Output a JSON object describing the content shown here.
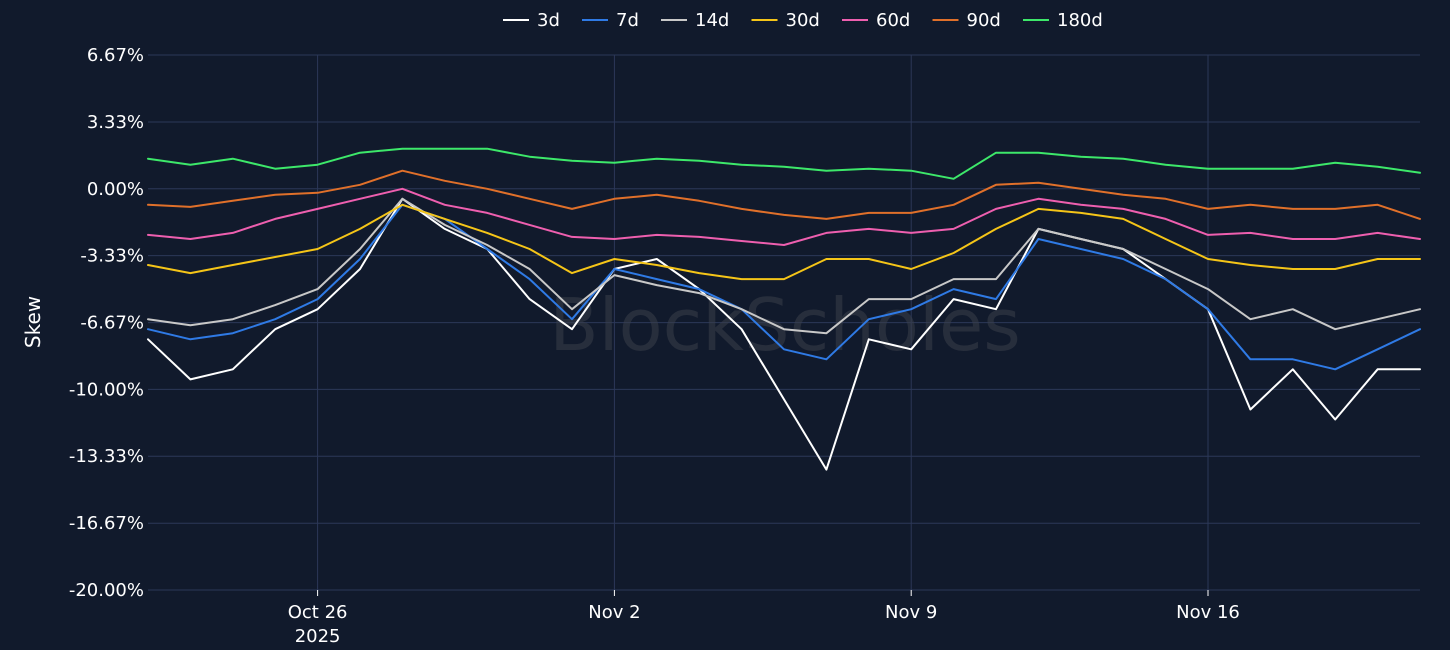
{
  "watermark": "BlockScholes",
  "chart_data": {
    "type": "line",
    "title": "",
    "xlabel": "",
    "ylabel": "Skew",
    "ylim": [
      -20.0,
      6.67
    ],
    "y_ticks": [
      "6.67%",
      "3.33%",
      "0.00%",
      "-3.33%",
      "-6.67%",
      "-10.00%",
      "-13.33%",
      "-16.67%",
      "-20.00%"
    ],
    "y_tick_values": [
      6.67,
      3.33,
      0.0,
      -3.33,
      -6.67,
      -10.0,
      -13.33,
      -16.67,
      -20.0
    ],
    "xlim": [
      "2025-10-22",
      "2025-11-21"
    ],
    "x_ticks": [
      {
        "date": "2025-10-26",
        "label": "Oct 26",
        "sublabel": "2025"
      },
      {
        "date": "2025-11-02",
        "label": "Nov 2",
        "sublabel": ""
      },
      {
        "date": "2025-11-09",
        "label": "Nov 9",
        "sublabel": ""
      },
      {
        "date": "2025-11-16",
        "label": "Nov 16",
        "sublabel": ""
      }
    ],
    "grid": true,
    "legend_position": "top-center",
    "x": [
      "2025-10-22",
      "2025-10-23",
      "2025-10-24",
      "2025-10-25",
      "2025-10-26",
      "2025-10-27",
      "2025-10-28",
      "2025-10-29",
      "2025-10-30",
      "2025-10-31",
      "2025-11-01",
      "2025-11-02",
      "2025-11-03",
      "2025-11-04",
      "2025-11-05",
      "2025-11-06",
      "2025-11-07",
      "2025-11-08",
      "2025-11-09",
      "2025-11-10",
      "2025-11-11",
      "2025-11-12",
      "2025-11-13",
      "2025-11-14",
      "2025-11-15",
      "2025-11-16",
      "2025-11-17",
      "2025-11-18",
      "2025-11-19",
      "2025-11-20",
      "2025-11-21"
    ],
    "series": [
      {
        "name": "3d",
        "color": "#ffffff",
        "values": [
          -7.5,
          -9.5,
          -9.0,
          -7.0,
          -6.0,
          -4.0,
          -0.5,
          -2.0,
          -3.0,
          -5.5,
          -7.0,
          -4.0,
          -3.5,
          -5.0,
          -7.0,
          -10.5,
          -14.0,
          -7.5,
          -8.0,
          -5.5,
          -6.0,
          -2.0,
          -2.5,
          -3.0,
          -4.5,
          -6.0,
          -11.0,
          -9.0,
          -11.5,
          -9.0,
          -9.0
        ]
      },
      {
        "name": "7d",
        "color": "#2f7ae5",
        "values": [
          -7.0,
          -7.5,
          -7.2,
          -6.5,
          -5.5,
          -3.5,
          -0.8,
          -1.5,
          -3.0,
          -4.5,
          -6.5,
          -4.0,
          -4.5,
          -5.0,
          -6.0,
          -8.0,
          -8.5,
          -6.5,
          -6.0,
          -5.0,
          -5.5,
          -2.5,
          -3.0,
          -3.5,
          -4.5,
          -6.0,
          -8.5,
          -8.5,
          -9.0,
          -8.0,
          -7.0
        ]
      },
      {
        "name": "14d",
        "color": "#c8c8c8",
        "values": [
          -6.5,
          -6.8,
          -6.5,
          -5.8,
          -5.0,
          -3.0,
          -0.5,
          -1.8,
          -2.8,
          -4.0,
          -6.0,
          -4.3,
          -4.8,
          -5.2,
          -6.0,
          -7.0,
          -7.2,
          -5.5,
          -5.5,
          -4.5,
          -4.5,
          -2.0,
          -2.5,
          -3.0,
          -4.0,
          -5.0,
          -6.5,
          -6.0,
          -7.0,
          -6.5,
          -6.0
        ]
      },
      {
        "name": "30d",
        "color": "#f5c518",
        "values": [
          -3.8,
          -4.2,
          -3.8,
          -3.4,
          -3.0,
          -2.0,
          -0.8,
          -1.5,
          -2.2,
          -3.0,
          -4.2,
          -3.5,
          -3.8,
          -4.2,
          -4.5,
          -4.5,
          -3.5,
          -3.5,
          -4.0,
          -3.2,
          -2.0,
          -1.0,
          -1.2,
          -1.5,
          -2.5,
          -3.5,
          -3.8,
          -4.0,
          -4.0,
          -3.5,
          -3.5
        ]
      },
      {
        "name": "60d",
        "color": "#ee5faf",
        "values": [
          -2.3,
          -2.5,
          -2.2,
          -1.5,
          -1.0,
          -0.5,
          0.0,
          -0.8,
          -1.2,
          -1.8,
          -2.4,
          -2.5,
          -2.3,
          -2.4,
          -2.6,
          -2.8,
          -2.2,
          -2.0,
          -2.2,
          -2.0,
          -1.0,
          -0.5,
          -0.8,
          -1.0,
          -1.5,
          -2.3,
          -2.2,
          -2.5,
          -2.5,
          -2.2,
          -2.5
        ]
      },
      {
        "name": "90d",
        "color": "#e0702a",
        "values": [
          -0.8,
          -0.9,
          -0.6,
          -0.3,
          -0.2,
          0.2,
          0.9,
          0.4,
          0.0,
          -0.5,
          -1.0,
          -0.5,
          -0.3,
          -0.6,
          -1.0,
          -1.3,
          -1.5,
          -1.2,
          -1.2,
          -0.8,
          0.2,
          0.3,
          0.0,
          -0.3,
          -0.5,
          -1.0,
          -0.8,
          -1.0,
          -1.0,
          -0.8,
          -1.5
        ]
      },
      {
        "name": "180d",
        "color": "#3de86a",
        "values": [
          1.5,
          1.2,
          1.5,
          1.0,
          1.2,
          1.8,
          2.0,
          2.0,
          2.0,
          1.6,
          1.4,
          1.3,
          1.5,
          1.4,
          1.2,
          1.1,
          0.9,
          1.0,
          0.9,
          0.5,
          1.8,
          1.8,
          1.6,
          1.5,
          1.2,
          1.0,
          1.0,
          1.0,
          1.3,
          1.1,
          0.8
        ]
      }
    ]
  }
}
